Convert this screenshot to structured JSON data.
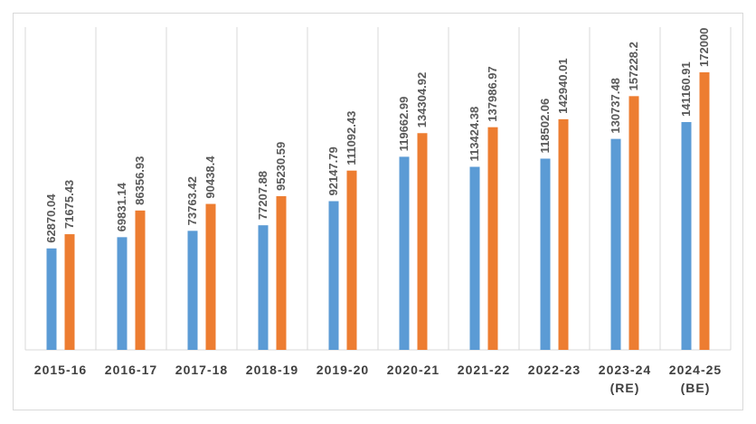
{
  "chart_data": {
    "type": "bar",
    "categories": [
      [
        "2015-16"
      ],
      [
        "2016-17"
      ],
      [
        "2017-18"
      ],
      [
        "2018-19"
      ],
      [
        "2019-20"
      ],
      [
        "2020-21"
      ],
      [
        "2021-22"
      ],
      [
        "2022-23"
      ],
      [
        "2023-24",
        "(RE)"
      ],
      [
        "2024-25",
        "(BE)"
      ]
    ],
    "series": [
      {
        "color": "#5b9bd5",
        "values": [
          62870.04,
          69831.14,
          73763.42,
          77207.88,
          92147.79,
          119662.99,
          113424.38,
          118502.06,
          130737.48,
          141160.91
        ]
      },
      {
        "color": "#ed7d31",
        "values": [
          71675.43,
          86356.93,
          90438.4,
          95230.59,
          111092.43,
          134304.92,
          137986.97,
          142940.01,
          157228.2,
          172000
        ]
      }
    ],
    "value_labels": [
      [
        "62870.04",
        "69831.14",
        "73763.42",
        "77207.88",
        "92147.79",
        "119662.99",
        "113424.38",
        "118502.06",
        "130737.48",
        "141160.91"
      ],
      [
        "71675.43",
        "86356.93",
        "90438.4",
        "95230.59",
        "111092.43",
        "134304.92",
        "137986.97",
        "142940.01",
        "157228.2",
        "172000"
      ]
    ],
    "ylim": [
      0,
      200000
    ],
    "grid": "vertical category separators",
    "legend": "none"
  }
}
